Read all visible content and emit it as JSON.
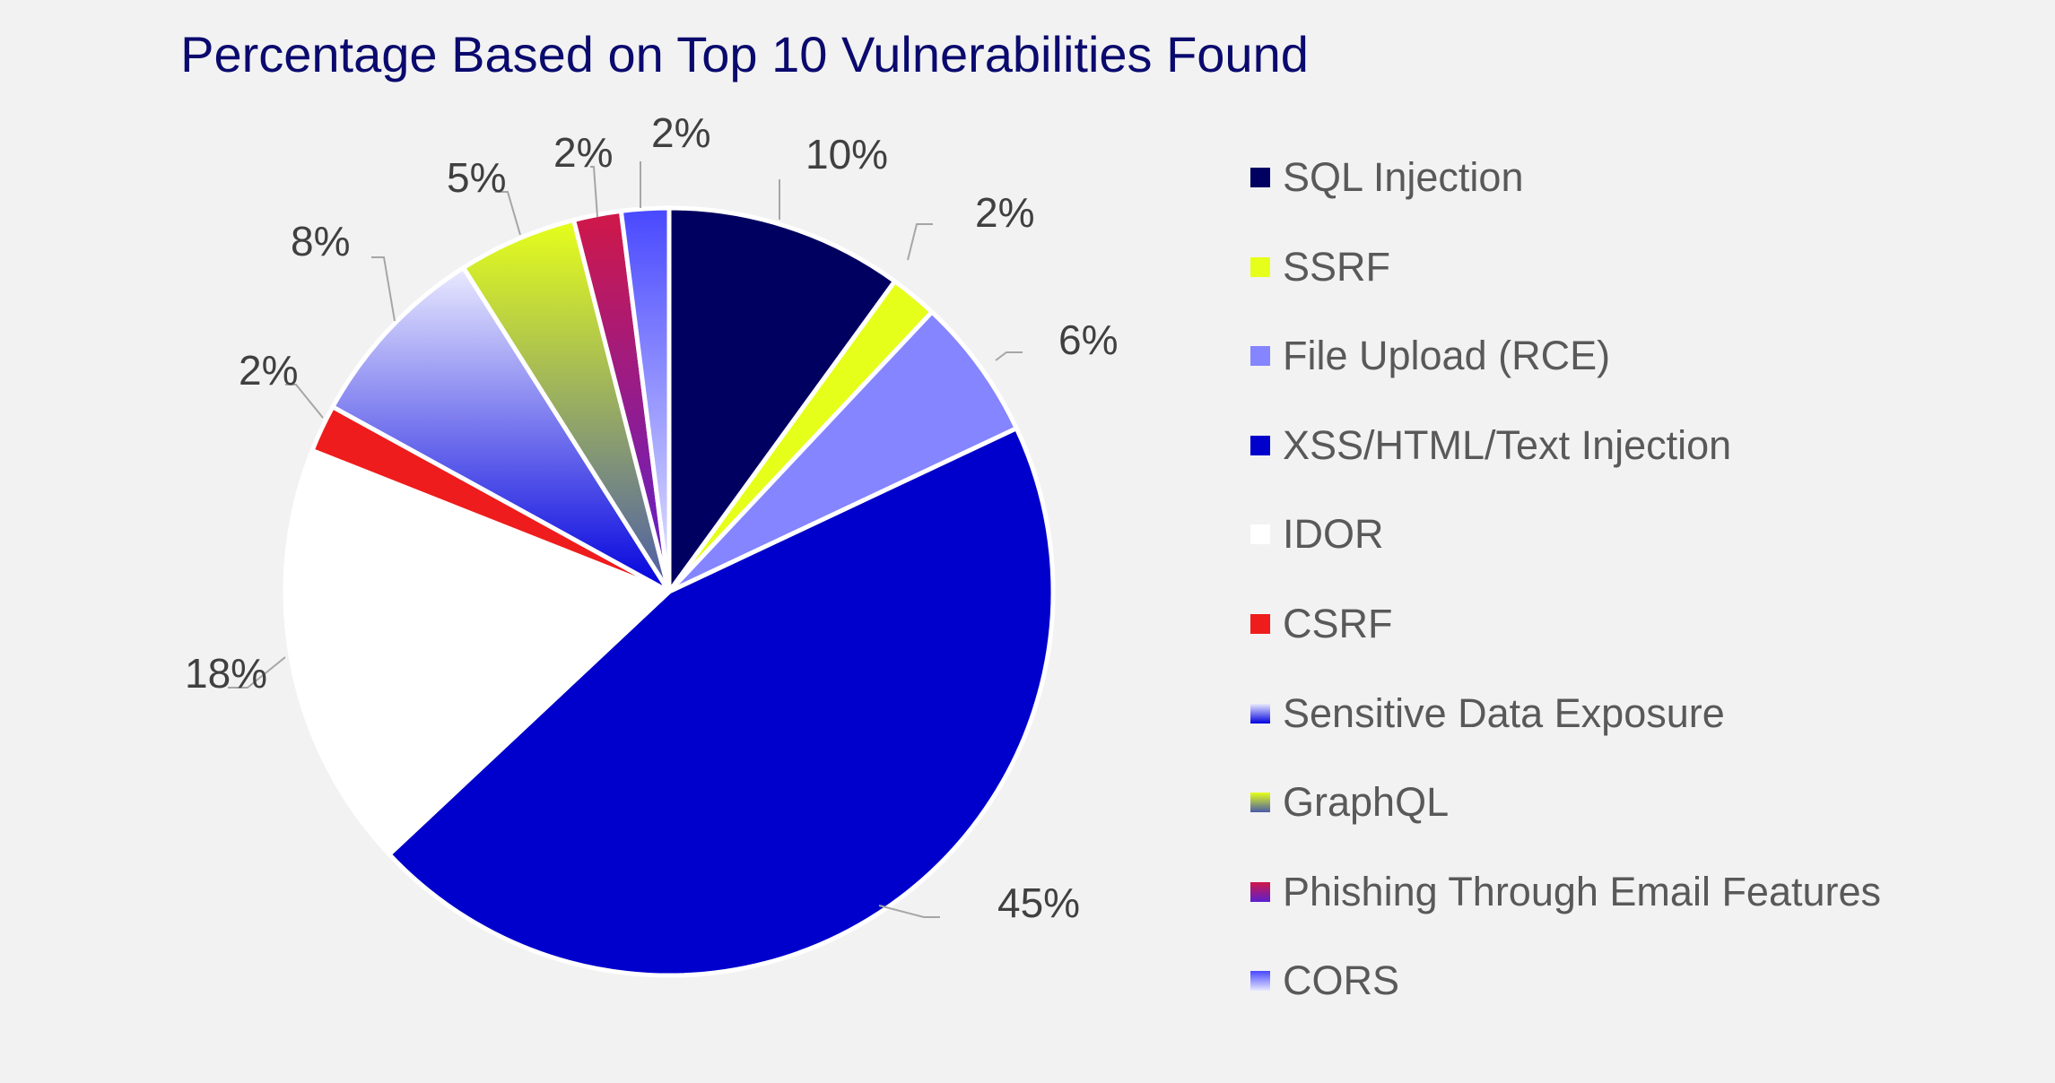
{
  "chart_data": {
    "type": "pie",
    "title": "Percentage Based on Top 10 Vulnerabilities Found",
    "legend_position": "right",
    "slices": [
      {
        "name": "SQL Injection",
        "value": 10,
        "label": "10%",
        "color": "#000060",
        "gradient": false
      },
      {
        "name": "SSRF",
        "value": 2,
        "label": "2%",
        "color": "#e6ff1a",
        "gradient": false
      },
      {
        "name": "File Upload (RCE)",
        "value": 6,
        "label": "6%",
        "color": "#8585ff",
        "gradient": false
      },
      {
        "name": "XSS/HTML/Text Injection",
        "value": 45,
        "label": "45%",
        "color": "#0000cc",
        "gradient": false
      },
      {
        "name": "IDOR",
        "value": 18,
        "label": "18%",
        "color": "#ffffff",
        "gradient": false
      },
      {
        "name": "CSRF",
        "value": 2,
        "label": "2%",
        "color": "#ee1c1c",
        "gradient": false
      },
      {
        "name": "Sensitive Data Exposure",
        "value": 8,
        "label": "8%",
        "color": "#eaeaff",
        "color2": "#0000dd",
        "gradient": true
      },
      {
        "name": "GraphQL",
        "value": 5,
        "label": "5%",
        "color": "#e6ff1a",
        "color2": "#4a5aaa",
        "gradient": true
      },
      {
        "name": "Phishing Through Email Features",
        "value": 2,
        "label": "2%",
        "color": "#d01848",
        "color2": "#5a20d0",
        "gradient": true
      },
      {
        "name": "CORS",
        "value": 2,
        "label": "2%",
        "color": "#4848ff",
        "color2": "#e8e8ff",
        "gradient": true
      }
    ]
  }
}
